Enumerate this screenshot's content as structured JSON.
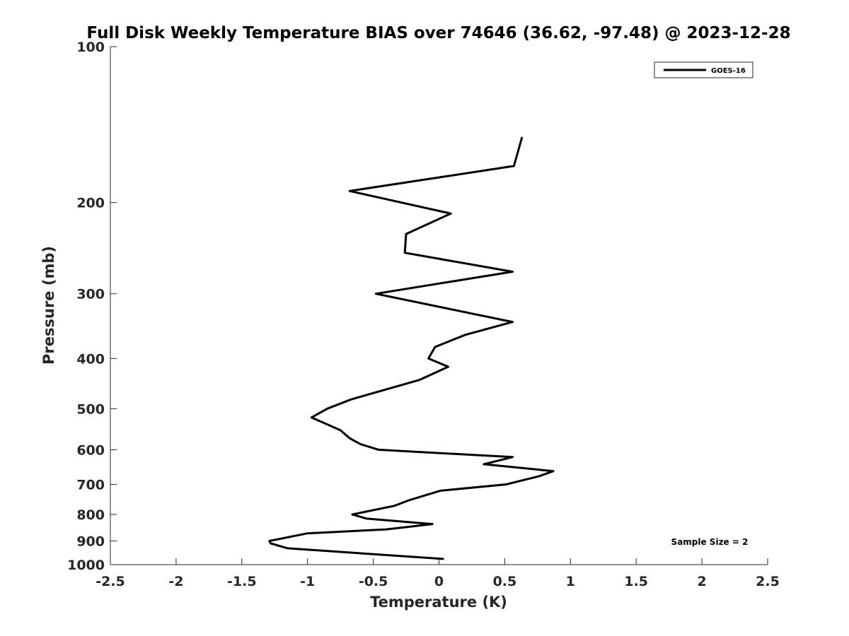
{
  "chart_data": {
    "type": "line",
    "title": "Full Disk Weekly Temperature BIAS over 74646 (36.62, -97.48) @ 2023-12-28",
    "xlabel": "Temperature (K)",
    "ylabel": "Pressure (mb)",
    "xlim": [
      -2.5,
      2.5
    ],
    "ylim": [
      100,
      1000
    ],
    "y_scale": "log",
    "y_reversed": true,
    "grid": false,
    "legend_position": "top-right",
    "x_ticks": [
      -2.5,
      -2,
      -1.5,
      -1,
      -0.5,
      0,
      0.5,
      1,
      1.5,
      2,
      2.5
    ],
    "x_tick_labels": [
      "-2.5",
      "-2",
      "-1.5",
      "-1",
      "-0.5",
      "0",
      "0.5",
      "1",
      "1.5",
      "2",
      "2.5"
    ],
    "y_ticks": [
      100,
      200,
      300,
      400,
      500,
      600,
      700,
      800,
      900,
      1000
    ],
    "y_tick_labels": [
      "100",
      "200",
      "300",
      "400",
      "500",
      "600",
      "700",
      "800",
      "900",
      "1000"
    ],
    "annotation": "Sample Size = 2",
    "series": [
      {
        "name": "GOES-16",
        "color": "#000000",
        "points": [
          {
            "x": 0.63,
            "y": 150
          },
          {
            "x": 0.57,
            "y": 170
          },
          {
            "x": -0.68,
            "y": 190
          },
          {
            "x": 0.09,
            "y": 210
          },
          {
            "x": -0.25,
            "y": 230
          },
          {
            "x": -0.26,
            "y": 250
          },
          {
            "x": 0.56,
            "y": 272
          },
          {
            "x": -0.48,
            "y": 300
          },
          {
            "x": 0.56,
            "y": 340
          },
          {
            "x": 0.2,
            "y": 360
          },
          {
            "x": -0.03,
            "y": 380
          },
          {
            "x": -0.08,
            "y": 400
          },
          {
            "x": 0.07,
            "y": 415
          },
          {
            "x": -0.15,
            "y": 440
          },
          {
            "x": -0.67,
            "y": 480
          },
          {
            "x": -0.85,
            "y": 500
          },
          {
            "x": -0.97,
            "y": 520
          },
          {
            "x": -0.75,
            "y": 550
          },
          {
            "x": -0.68,
            "y": 570
          },
          {
            "x": -0.6,
            "y": 585
          },
          {
            "x": -0.46,
            "y": 600
          },
          {
            "x": 0.56,
            "y": 620
          },
          {
            "x": 0.34,
            "y": 640
          },
          {
            "x": 0.87,
            "y": 660
          },
          {
            "x": 0.76,
            "y": 675
          },
          {
            "x": 0.51,
            "y": 700
          },
          {
            "x": 0.01,
            "y": 720
          },
          {
            "x": -0.22,
            "y": 750
          },
          {
            "x": -0.34,
            "y": 770
          },
          {
            "x": -0.66,
            "y": 800
          },
          {
            "x": -0.55,
            "y": 815
          },
          {
            "x": -0.05,
            "y": 835
          },
          {
            "x": -0.4,
            "y": 855
          },
          {
            "x": -1.0,
            "y": 870
          },
          {
            "x": -1.29,
            "y": 900
          },
          {
            "x": -1.28,
            "y": 910
          },
          {
            "x": -1.15,
            "y": 930
          },
          {
            "x": 0.03,
            "y": 975
          }
        ]
      }
    ]
  }
}
